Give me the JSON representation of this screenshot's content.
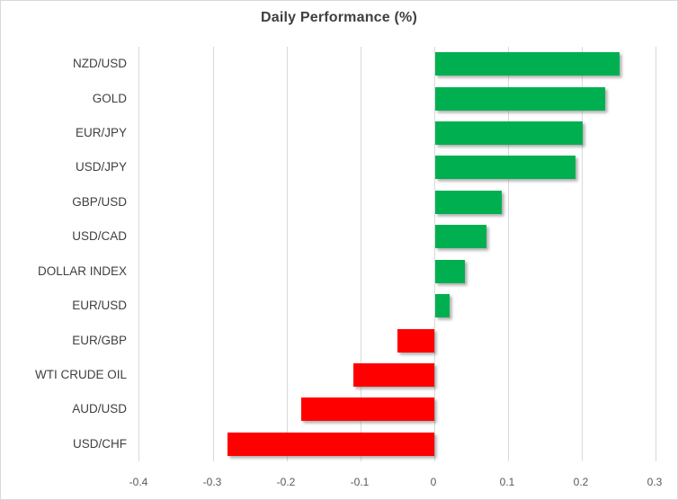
{
  "title": "Daily Performance (%)",
  "chart_data": {
    "type": "bar",
    "orientation": "horizontal",
    "title": "Daily Performance (%)",
    "categories": [
      "NZD/USD",
      "GOLD",
      "EUR/JPY",
      "USD/JPY",
      "GBP/USD",
      "USD/CAD",
      "DOLLAR INDEX",
      "EUR/USD",
      "EUR/GBP",
      "WTI CRUDE OIL",
      "AUD/USD",
      "USD/CHF"
    ],
    "values": [
      0.25,
      0.23,
      0.2,
      0.19,
      0.09,
      0.07,
      0.04,
      0.02,
      -0.05,
      -0.11,
      -0.18,
      -0.28
    ],
    "xlabel": "",
    "ylabel": "",
    "xlim": [
      -0.4,
      0.3
    ],
    "x_ticks": [
      "-0.4",
      "-0.3",
      "-0.2",
      "-0.1",
      "0",
      "0.1",
      "0.2",
      "0.3"
    ],
    "x_tick_values": [
      -0.4,
      -0.3,
      -0.2,
      -0.1,
      0,
      0.1,
      0.2,
      0.3
    ],
    "grid": "vertical-only",
    "legend": "none",
    "colors": {
      "positive": "#00B050",
      "negative": "#FF0000",
      "gridline": "#D9D9D9",
      "chart_border": "#D9D9D9",
      "title_text": "#3F3F3F",
      "category_text": "#404040",
      "tick_text": "#595959"
    }
  }
}
